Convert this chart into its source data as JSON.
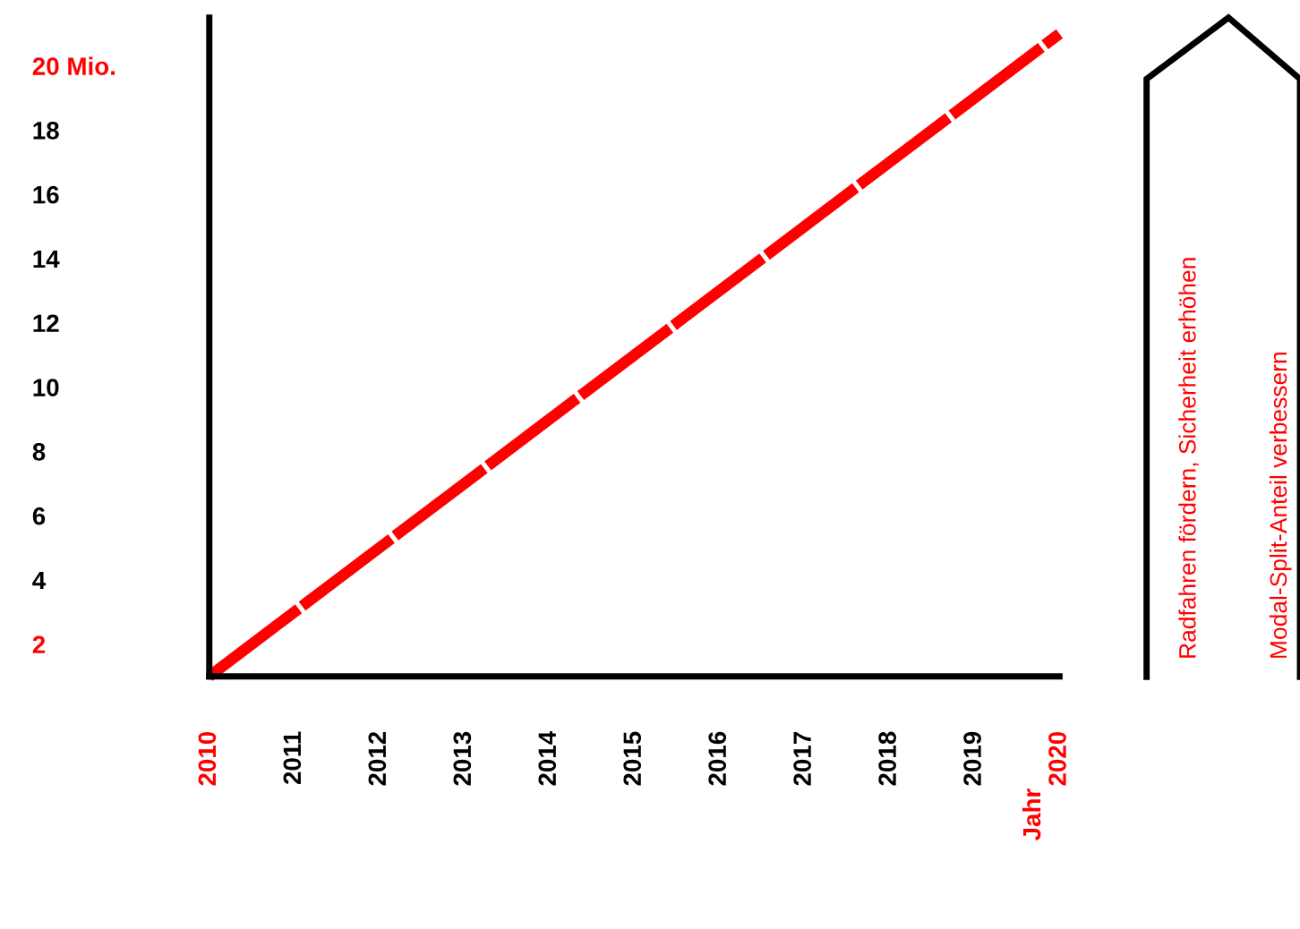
{
  "chart_data": {
    "type": "line",
    "x": [
      2010,
      2020
    ],
    "series": [
      {
        "color": "#ff0000",
        "values": [
          1,
          21
        ]
      }
    ],
    "xlim": [
      2010,
      2020
    ],
    "xticks": [
      2010,
      2011,
      2012,
      2013,
      2014,
      2015,
      2016,
      2017,
      2018,
      2019,
      2020
    ],
    "ylim": [
      1,
      21.5
    ],
    "yticks": [
      2,
      4,
      6,
      8,
      10,
      12,
      14,
      16,
      18,
      {
        "value": 20,
        "label": "20 Mio."
      }
    ],
    "grid": false,
    "legend": false,
    "marker": "none",
    "line_style": "dashed",
    "annotations": [
      "Radfahren fördern, Sicherheit erhöhen",
      "Modal-Split-Anteil verbessern",
      "Jahr"
    ]
  }
}
